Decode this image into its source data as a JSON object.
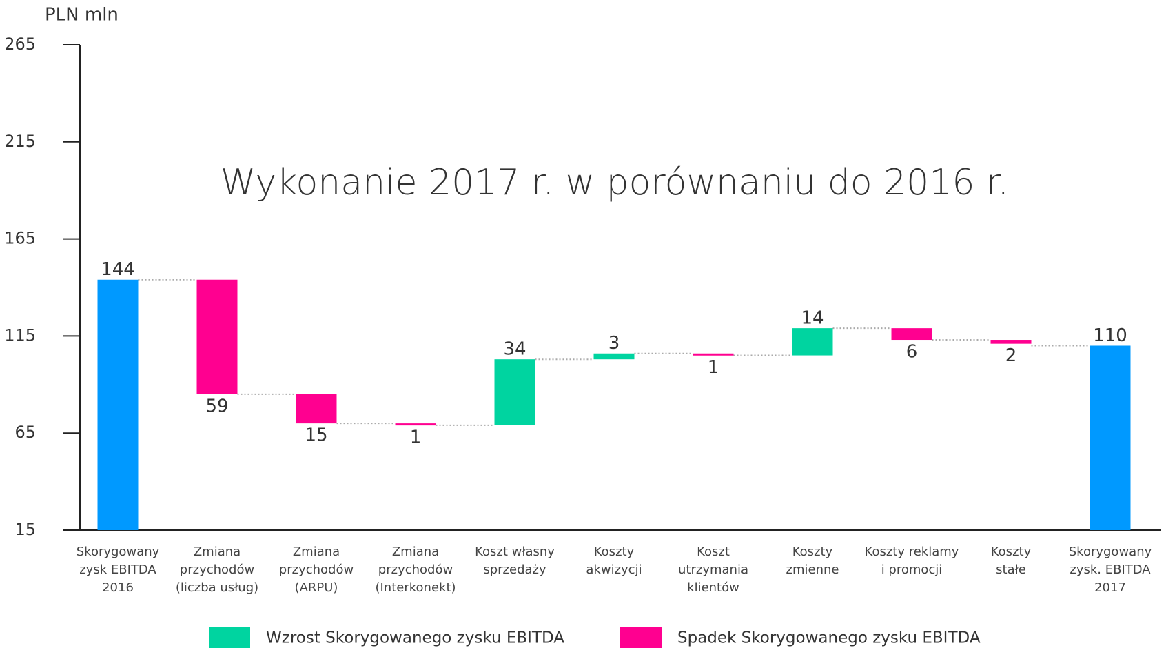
{
  "chart_data": {
    "type": "waterfall",
    "title": "Wykonanie 2017 r. w porównaniu do 2016 r.",
    "y_label": "PLN mln",
    "categories": [
      "Skorygowany\nzysk EBITDA\n2016",
      "Zmiana\nprzychodów\n(liczba usług)",
      "Zmiana\nprzychodów\n(ARPU)",
      "Zmiana\nprzychodów\n(Interkonekt)",
      "Koszt własny\nsprzedaży",
      "Koszty\nakwizycji",
      "Koszt\nutrzymania\nklientów",
      "Koszty\nzmienne",
      "Koszty reklamy\ni promocji",
      "Koszty\nstałe",
      "Skorygowany\nzysk. EBITDA\n2017"
    ],
    "values": [
      144,
      -59,
      -15,
      -1,
      34,
      3,
      -1,
      14,
      -6,
      -2,
      110
    ],
    "value_labels": [
      "144",
      "59",
      "15",
      "1",
      "34",
      "3",
      "1",
      "14",
      "6",
      "2",
      "110"
    ],
    "measure": [
      "total",
      "relative",
      "relative",
      "relative",
      "relative",
      "relative",
      "relative",
      "relative",
      "relative",
      "relative",
      "total"
    ],
    "total_color": "#0099ff",
    "legend": [
      {
        "name": "Wzrost Skorygowanego zysku EBITDA",
        "color": "#00d4a0"
      },
      {
        "name": "Spadek Skorygowanego zysku EBITDA",
        "color": "#ff0090"
      }
    ],
    "ylim": [
      15,
      265
    ],
    "yticks": [
      15,
      65,
      115,
      165,
      215,
      265
    ]
  }
}
